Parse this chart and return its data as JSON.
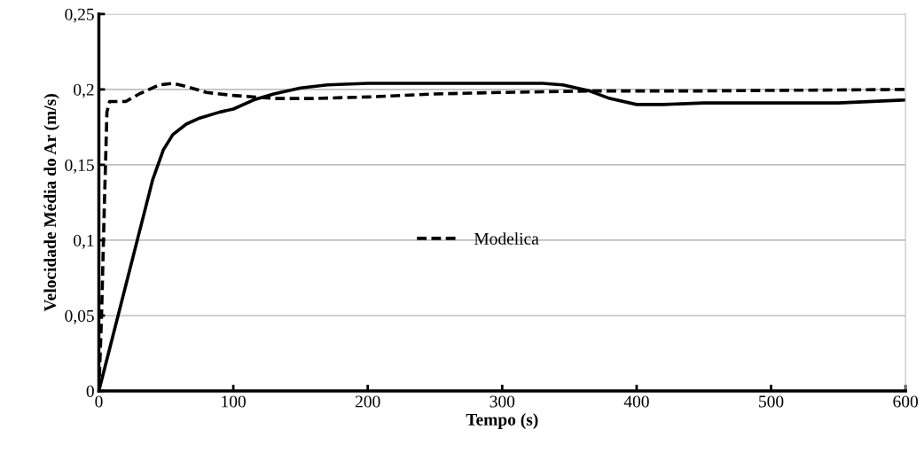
{
  "chart_data": {
    "type": "line",
    "xlabel": "Tempo (s)",
    "ylabel": "Velocidade Média do Ar (m/s)",
    "xlim": [
      0,
      600
    ],
    "xticks": [
      0,
      100,
      200,
      300,
      400,
      500,
      600
    ],
    "ylim": [
      0,
      0.25
    ],
    "yticks": [
      0,
      {
        "value": 0.05,
        "label": "0,05"
      },
      {
        "value": 0.1,
        "label": "0,1"
      },
      {
        "value": 0.15,
        "label": "0,15"
      },
      {
        "value": 0.2,
        "label": "0,2"
      },
      {
        "value": 0.25,
        "label": "0,25"
      }
    ],
    "grid": "y",
    "legend": "center",
    "marker": "none",
    "series": [
      {
        "name": "Modelica",
        "color": "#000000",
        "line_style": "dashed",
        "x": [
          0,
          2,
          4,
          6,
          8,
          20,
          30,
          45,
          55,
          65,
          80,
          100,
          130,
          160,
          200,
          250,
          300,
          370,
          450,
          600
        ],
        "values": [
          0,
          0.05,
          0.12,
          0.185,
          0.192,
          0.192,
          0.197,
          0.203,
          0.204,
          0.202,
          0.198,
          0.196,
          0.194,
          0.194,
          0.195,
          0.197,
          0.198,
          0.199,
          0.199,
          0.2
        ]
      },
      {
        "color": "#000000",
        "line_style": "solid",
        "x": [
          0,
          10,
          20,
          30,
          40,
          48,
          55,
          65,
          75,
          90,
          100,
          115,
          130,
          150,
          170,
          200,
          250,
          300,
          330,
          345,
          365,
          380,
          400,
          420,
          450,
          500,
          550,
          600
        ],
        "values": [
          0,
          0.035,
          0.07,
          0.105,
          0.14,
          0.16,
          0.17,
          0.177,
          0.181,
          0.185,
          0.187,
          0.193,
          0.197,
          0.201,
          0.203,
          0.204,
          0.204,
          0.204,
          0.204,
          0.203,
          0.199,
          0.194,
          0.19,
          0.19,
          0.191,
          0.191,
          0.191,
          0.193
        ]
      }
    ]
  }
}
